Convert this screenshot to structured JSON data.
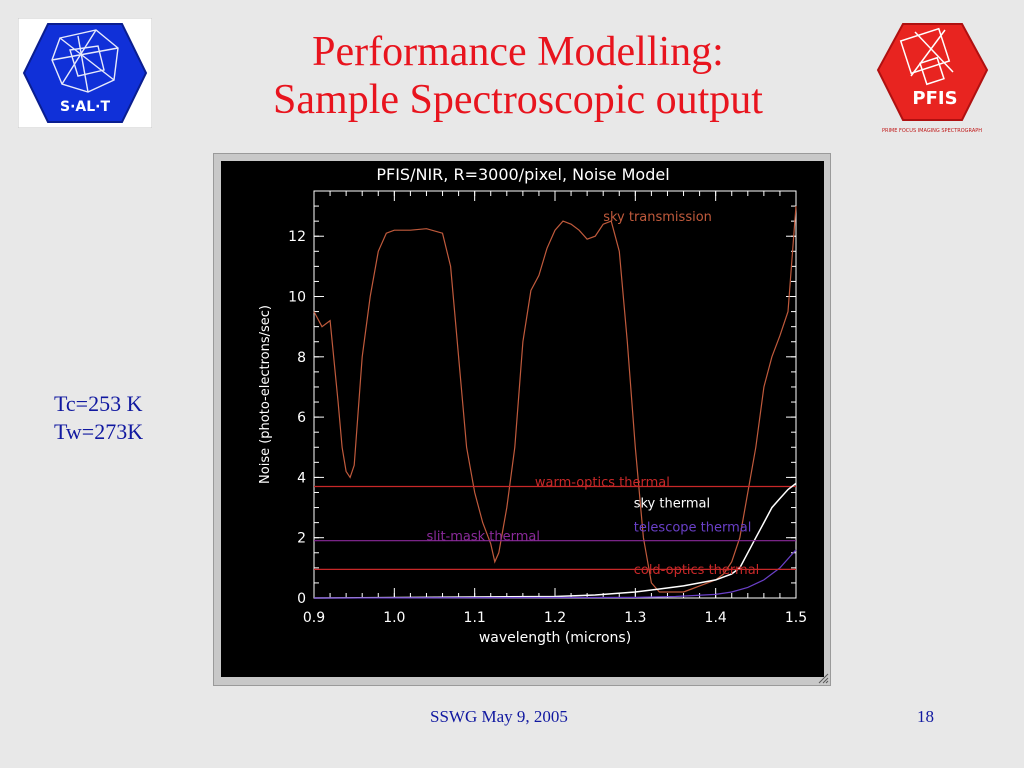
{
  "slide": {
    "title_line1": "Performance Modelling:",
    "title_line2": "Sample Spectroscopic output",
    "params": [
      "Tc=253 K",
      "Tw=273K"
    ],
    "footer_left": "SSWG  May 9, 2005",
    "footer_right": "18",
    "salt_logo_text": "S·AL·T",
    "pfis_logo_text": "PFIS",
    "pfis_logo_subtext": "PRIME FOCUS IMAGING SPECTROGRAPH"
  },
  "chart_data": {
    "type": "line",
    "title": "PFIS/NIR, R=3000/pixel, Noise Model",
    "xlabel": "wavelength (microns)",
    "ylabel": "Noise (photo-electrons/sec)",
    "xlim": [
      0.9,
      1.5
    ],
    "ylim": [
      0,
      13.5
    ],
    "xticks": [
      0.9,
      1.0,
      1.1,
      1.2,
      1.3,
      1.4,
      1.5
    ],
    "yticks": [
      0,
      2,
      4,
      6,
      8,
      10,
      12
    ],
    "xtick_labels": [
      "0.9",
      "1.0",
      "1.1",
      "1.2",
      "1.3",
      "1.4",
      "1.5"
    ],
    "ytick_labels": [
      "0",
      "2",
      "4",
      "6",
      "8",
      "10",
      "12"
    ],
    "colors": {
      "sky_transmission": "#c05a3c",
      "warm_optics": "#c82828",
      "sky_thermal": "#ffffff",
      "telescope": "#6a40c8",
      "slit_mask": "#8a2a9a",
      "cold_optics": "#c82828"
    },
    "series": [
      {
        "name": "sky transmission",
        "color_key": "sky_transmission",
        "label_x": 1.26,
        "label_y": 12.5,
        "x": [
          0.9,
          0.91,
          0.92,
          0.93,
          0.935,
          0.94,
          0.945,
          0.95,
          0.96,
          0.97,
          0.98,
          0.99,
          1.0,
          1.02,
          1.04,
          1.06,
          1.07,
          1.08,
          1.09,
          1.1,
          1.11,
          1.12,
          1.125,
          1.13,
          1.14,
          1.15,
          1.16,
          1.17,
          1.18,
          1.19,
          1.2,
          1.21,
          1.22,
          1.23,
          1.24,
          1.25,
          1.26,
          1.27,
          1.28,
          1.29,
          1.3,
          1.31,
          1.32,
          1.33,
          1.34,
          1.35,
          1.36,
          1.37,
          1.38,
          1.39,
          1.4,
          1.41,
          1.42,
          1.43,
          1.44,
          1.45,
          1.46,
          1.47,
          1.48,
          1.49,
          1.5
        ],
        "y": [
          9.5,
          9.0,
          9.2,
          6.5,
          5.0,
          4.2,
          4.0,
          4.4,
          8.0,
          10.0,
          11.5,
          12.1,
          12.2,
          12.2,
          12.25,
          12.1,
          11.0,
          8.0,
          5.0,
          3.5,
          2.5,
          1.8,
          1.2,
          1.5,
          3.0,
          5.0,
          8.5,
          10.2,
          10.7,
          11.6,
          12.2,
          12.5,
          12.4,
          12.2,
          11.9,
          12.0,
          12.4,
          12.5,
          11.5,
          8.5,
          5.0,
          2.0,
          0.5,
          0.2,
          0.2,
          0.2,
          0.2,
          0.3,
          0.4,
          0.5,
          0.6,
          0.8,
          1.2,
          2.0,
          3.5,
          5.0,
          7.0,
          8.0,
          8.7,
          9.5,
          13.0
        ]
      },
      {
        "name": "warm-optics thermal",
        "color_key": "warm_optics",
        "label_x": 1.175,
        "label_y": 3.7,
        "x": [
          0.9,
          1.5
        ],
        "y": [
          3.7,
          3.7
        ]
      },
      {
        "name": "sky thermal",
        "color_key": "sky_thermal",
        "label_x": 1.298,
        "label_y": 3.0,
        "x": [
          0.9,
          1.2,
          1.25,
          1.3,
          1.33,
          1.36,
          1.38,
          1.4,
          1.42,
          1.43,
          1.44,
          1.45,
          1.46,
          1.47,
          1.48,
          1.49,
          1.5
        ],
        "y": [
          0.0,
          0.05,
          0.1,
          0.2,
          0.3,
          0.4,
          0.5,
          0.6,
          0.8,
          1.0,
          1.5,
          2.0,
          2.5,
          3.0,
          3.3,
          3.6,
          3.8
        ]
      },
      {
        "name": "telescope thermal",
        "color_key": "telescope",
        "label_x": 1.298,
        "label_y": 2.2,
        "x": [
          0.9,
          1.3,
          1.35,
          1.4,
          1.42,
          1.44,
          1.46,
          1.48,
          1.5
        ],
        "y": [
          0.0,
          0.02,
          0.05,
          0.12,
          0.2,
          0.35,
          0.6,
          1.0,
          1.6
        ]
      },
      {
        "name": "slit-mask thermal",
        "color_key": "slit_mask",
        "label_x": 1.04,
        "label_y": 1.9,
        "x": [
          0.9,
          1.5
        ],
        "y": [
          1.9,
          1.9
        ]
      },
      {
        "name": "cold-optics thermal",
        "color_key": "cold_optics",
        "label_x": 1.298,
        "label_y": 0.8,
        "x": [
          0.9,
          1.5
        ],
        "y": [
          0.95,
          0.95
        ]
      }
    ]
  }
}
